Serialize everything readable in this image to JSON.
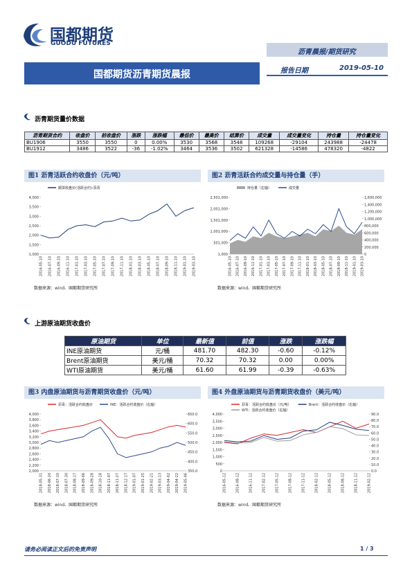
{
  "header": {
    "logo_cn": "国都期货",
    "logo_en": "GUODU FUTURES",
    "category": "沥青晨报/期货研究",
    "title": "国都期货沥青期货晨报",
    "date_label": "报告日期",
    "date": "2019-05-10"
  },
  "section1": {
    "title": "沥青期货量价数据"
  },
  "table1": {
    "headers": [
      "沥青期货合约",
      "收盘价",
      "前收盘价",
      "涨跌",
      "涨跌幅",
      "最低价",
      "最高价",
      "结算价",
      "成交量",
      "成交量变化",
      "持仓量",
      "持仓量变化"
    ],
    "rows": [
      [
        "BU1906",
        "3550",
        "3550",
        "0",
        "0.00%",
        "3530",
        "3568",
        "3548",
        "109268",
        "-29104",
        "243988",
        "-24478"
      ],
      [
        "BU1912",
        "3486",
        "3522",
        "-36",
        "-1.02%",
        "3464",
        "3536",
        "3502",
        "621328",
        "-14586",
        "478320",
        "-4822"
      ]
    ]
  },
  "section2": {
    "title": "上游原油期货收盘价"
  },
  "table2": {
    "headers": [
      "原油期货",
      "单位",
      "最新值",
      "前值",
      "涨跌",
      "涨跌幅"
    ],
    "rows": [
      [
        "INE原油期货",
        "元/桶",
        "481.70",
        "482.30",
        "-0.60",
        "-0.12%"
      ],
      [
        "Brent原油期货",
        "美元/桶",
        "70.32",
        "70.32",
        "0.00",
        "0.00%"
      ],
      [
        "WTI原油期货",
        "美元/桶",
        "61.60",
        "61.99",
        "-0.39",
        "-0.63%"
      ]
    ]
  },
  "charts": [
    {
      "type": "line",
      "title": "图1 沥青活跃合约收盘价（元/吨）",
      "source": "数据来源：wind、国都期货研究所",
      "x": [
        "2016-05-10",
        "2016-07-10",
        "2016-09-10",
        "2016-11-10",
        "2017-01-10",
        "2017-03-10",
        "2017-05-10",
        "2017-07-10",
        "2017-09-10",
        "2017-11-10",
        "2018-01-10",
        "2018-03-10",
        "2018-05-10",
        "2018-07-10",
        "2018-09-10",
        "2018-11-10",
        "2019-01-10",
        "2019-03-10"
      ],
      "ylim": [
        1000,
        4000
      ],
      "yticks": [
        {
          "value": 1000,
          "label": "1,000"
        },
        {
          "value": 1500,
          "label": "1,500"
        },
        {
          "value": 2000,
          "label": "2,000"
        },
        {
          "value": 2500,
          "label": "2,500"
        },
        {
          "value": 3000,
          "label": "3,000"
        },
        {
          "value": 3500,
          "label": "3,500"
        },
        {
          "value": 4000,
          "label": "4,000"
        }
      ],
      "series": [
        {
          "name": "期货收盘价(活跃合约):沥青",
          "color": "#1f3f7a",
          "values": [
            2000,
            1850,
            1900,
            2300,
            2500,
            2550,
            2450,
            2700,
            2750,
            2900,
            2750,
            2800,
            3100,
            3300,
            3650,
            3000,
            3300,
            3450
          ]
        }
      ]
    },
    {
      "type": "line",
      "title": "图2 沥青活跃合约成交量与持仓量（手）",
      "source": "数据来源：wind、国都期货研究所",
      "x": [
        "2016-05-10",
        "2016-07-10",
        "2016-09-10",
        "2016-11-10",
        "2017-01-10",
        "2017-03-10",
        "2017-05-10",
        "2017-07-10",
        "2017-09-10",
        "2017-11-10",
        "2018-01-10",
        "2018-03-10",
        "2018-05-10",
        "2018-07-10",
        "2018-09-10",
        "2018-11-10",
        "2019-01-10",
        "2019-03-10"
      ],
      "ylim": [
        1000,
        2501000
      ],
      "yticks": [
        {
          "value": 1000,
          "label": "1,000"
        },
        {
          "value": 501000,
          "label": "501,000"
        },
        {
          "value": 1001000,
          "label": "1,001,000"
        },
        {
          "value": 1501000,
          "label": "1,501,000"
        },
        {
          "value": 2001000,
          "label": "2,001,000"
        },
        {
          "value": 2501000,
          "label": "2,501,000"
        }
      ],
      "y2lim": [
        0,
        1600000
      ],
      "y2ticks": [
        0,
        {
          "value": 200000,
          "label": "200,000"
        },
        {
          "value": 400000,
          "label": "400,000"
        },
        {
          "value": 600000,
          "label": "600,000"
        },
        {
          "value": 800000,
          "label": "800,000"
        },
        {
          "value": 1000000,
          "label": "1,000,000"
        },
        {
          "value": 1200000,
          "label": "1,200,000"
        },
        {
          "value": 1400000,
          "label": "1,400,000"
        },
        {
          "value": 1600000,
          "label": "1,600,000"
        }
      ],
      "series": [
        {
          "name": "持仓量（右轴）",
          "color": "#a6a6a6",
          "kind": "area",
          "axis": "y2",
          "values": [
            300000,
            400000,
            350000,
            500000,
            450000,
            600000,
            500000,
            450000,
            500000,
            550000,
            600000,
            500000,
            700000,
            650000,
            800000,
            600000,
            550000,
            700000
          ]
        },
        {
          "name": "成交量",
          "color": "#2e4d8f",
          "values": [
            600000,
            900000,
            700000,
            1200000,
            800000,
            1500000,
            900000,
            700000,
            1000000,
            800000,
            1100000,
            900000,
            1300000,
            1000000,
            2000000,
            1200000,
            900000,
            1400000
          ]
        }
      ]
    },
    {
      "type": "line",
      "title": "图3 内盘原油期货与沥青期货收盘价（元/吨）",
      "source": "数据来源：wind、国都期货研究所",
      "x": [
        "2018-05-31",
        "2018-06-20",
        "2018-07-10",
        "2018-07-30",
        "2018-08-17",
        "2018-09-06",
        "2018-09-28",
        "2018-10-18",
        "2018-11-07",
        "2018-11-27",
        "2018-12-17",
        "2019-01-07",
        "2019-01-25",
        "2019-02-21",
        "2019-03-13",
        "2019-04-02",
        "2019-04-22",
        "2019-05-06"
      ],
      "ylim": [
        2000,
        4000
      ],
      "yticks": [
        {
          "value": 2000,
          "label": "2,000"
        },
        {
          "value": 2200,
          "label": "2,200"
        },
        {
          "value": 2400,
          "label": "2,400"
        },
        {
          "value": 2600,
          "label": "2,600"
        },
        {
          "value": 2800,
          "label": "2,800"
        },
        {
          "value": 3000,
          "label": "3,000"
        },
        {
          "value": 3200,
          "label": "3,200"
        },
        {
          "value": 3400,
          "label": "3,400"
        },
        {
          "value": 3600,
          "label": "3,600"
        },
        {
          "value": 3800,
          "label": "3,800"
        },
        {
          "value": 4000,
          "label": "4,000"
        }
      ],
      "y2lim": [
        350,
        650
      ],
      "y2ticks": [
        {
          "value": 350,
          "label": "350.0"
        },
        {
          "value": 400,
          "label": "400.0"
        },
        {
          "value": 450,
          "label": "450.0"
        },
        {
          "value": 500,
          "label": "500.0"
        },
        {
          "value": 550,
          "label": "550.0"
        },
        {
          "value": 600,
          "label": "600.0"
        },
        {
          "value": 650,
          "label": "650.0"
        }
      ],
      "series": [
        {
          "name": "沥青：活跃合约收盘价",
          "color": "#d9262b",
          "values": [
            3300,
            3400,
            3450,
            3500,
            3550,
            3600,
            3700,
            3800,
            3500,
            3200,
            3150,
            3250,
            3300,
            3350,
            3450,
            3550,
            3600,
            3550
          ]
        },
        {
          "name": "INE：活跃合约收盘价（右轴）",
          "color": "#2e4d8f",
          "axis": "y2",
          "values": [
            490,
            510,
            500,
            510,
            520,
            530,
            560,
            580,
            520,
            440,
            420,
            430,
            440,
            450,
            470,
            480,
            500,
            485
          ]
        }
      ]
    },
    {
      "type": "line",
      "title": "图4 外盘原油期货与沥青期货收盘价（美元/吨）",
      "source": "数据来源：wind、国都期货研究所",
      "x": [
        "2016-05-12",
        "2016-08-12",
        "2016-11-12",
        "2017-02-12",
        "2017-05-12",
        "2017-08-12",
        "2017-11-12",
        "2018-02-12",
        "2018-05-12",
        "2018-08-12",
        "2018-11-12",
        "2019-02-12"
      ],
      "ylim": [
        0,
        4000
      ],
      "yticks": [
        0,
        500,
        {
          "value": 1000,
          "label": "1,000"
        },
        {
          "value": 1500,
          "label": "1,500"
        },
        {
          "value": 2000,
          "label": "2,000"
        },
        {
          "value": 2500,
          "label": "2,500"
        },
        {
          "value": 3000,
          "label": "3,000"
        },
        {
          "value": 3500,
          "label": "3,500"
        },
        {
          "value": 4000,
          "label": "4,000"
        }
      ],
      "y2lim": [
        0,
        90
      ],
      "y2ticks": [
        {
          "value": 0,
          "label": "0.0"
        },
        {
          "value": 10,
          "label": "10.0"
        },
        {
          "value": 20,
          "label": "20.0"
        },
        {
          "value": 30,
          "label": "30.0"
        },
        {
          "value": 40,
          "label": "40.0"
        },
        {
          "value": 50,
          "label": "50.0"
        },
        {
          "value": 60,
          "label": "60.0"
        },
        {
          "value": 70,
          "label": "70.0"
        },
        {
          "value": 80,
          "label": "80.0"
        },
        {
          "value": 90,
          "label": "90.0"
        }
      ],
      "series": [
        {
          "name": "沥青：活跃合约收盘价（元/吨）",
          "color": "#d9262b",
          "values": [
            2000,
            1900,
            2300,
            2600,
            2500,
            2700,
            2900,
            2700,
            3100,
            3500,
            3000,
            3300
          ]
        },
        {
          "name": "Brent：活跃合约收盘价（右轴）",
          "color": "#1f3f7a",
          "axis": "y2",
          "values": [
            48,
            46,
            47,
            56,
            50,
            52,
            63,
            65,
            77,
            72,
            66,
            64
          ]
        },
        {
          "name": "WTI：活跃合约收盘价（右轴）",
          "color": "#999999",
          "axis": "y2",
          "values": [
            46,
            44,
            45,
            53,
            47,
            48,
            57,
            61,
            70,
            67,
            57,
            56
          ]
        }
      ]
    }
  ],
  "footer": {
    "disclaimer": "请务必阅读正文后的免责声明",
    "page": "1 / 3"
  }
}
